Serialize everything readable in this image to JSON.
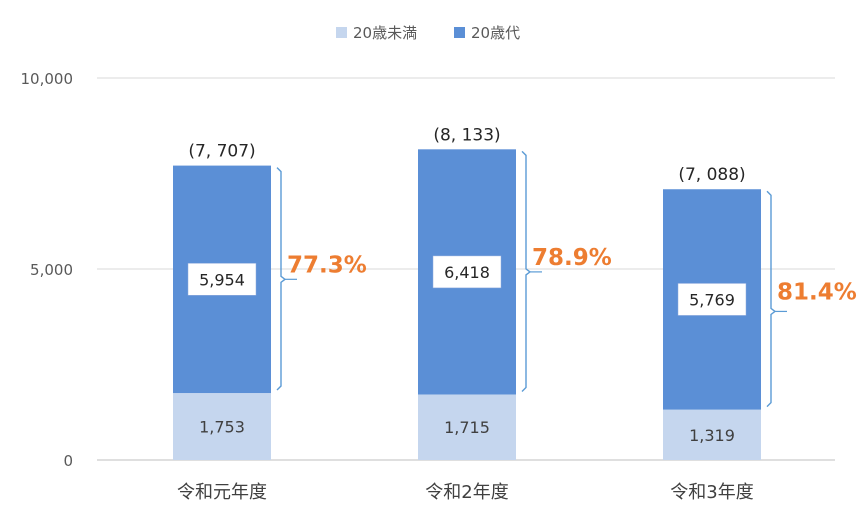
{
  "chart_data": {
    "type": "bar",
    "stacked": true,
    "categories": [
      "令和元年度",
      "令和2年度",
      "令和3年度"
    ],
    "series": [
      {
        "name": "20歳未満",
        "values": [
          1753,
          1715,
          1319
        ],
        "labels": [
          "1,753",
          "1,715",
          "1,319"
        ],
        "color": "#c5d6ee"
      },
      {
        "name": "20歳代",
        "values": [
          5954,
          6418,
          5769
        ],
        "labels": [
          "5,954",
          "6,418",
          "5,769"
        ],
        "color": "#5b8fd6"
      }
    ],
    "totals": [
      7707,
      8133,
      7088
    ],
    "total_labels": [
      "(7, 707)",
      "(8, 133)",
      "(7, 088)"
    ],
    "shares": [
      "77.3%",
      "78.9%",
      "81.4%"
    ],
    "share_color": "#ed7d31",
    "bracket_color": "#5b9bd5",
    "ylim": [
      0,
      10000
    ],
    "yticks": [
      0,
      5000,
      10000
    ],
    "ytick_labels": [
      "0",
      "5,000",
      "10,000"
    ],
    "grid": true,
    "legend_position": "top-center",
    "title": "",
    "xlabel": "",
    "ylabel": ""
  }
}
